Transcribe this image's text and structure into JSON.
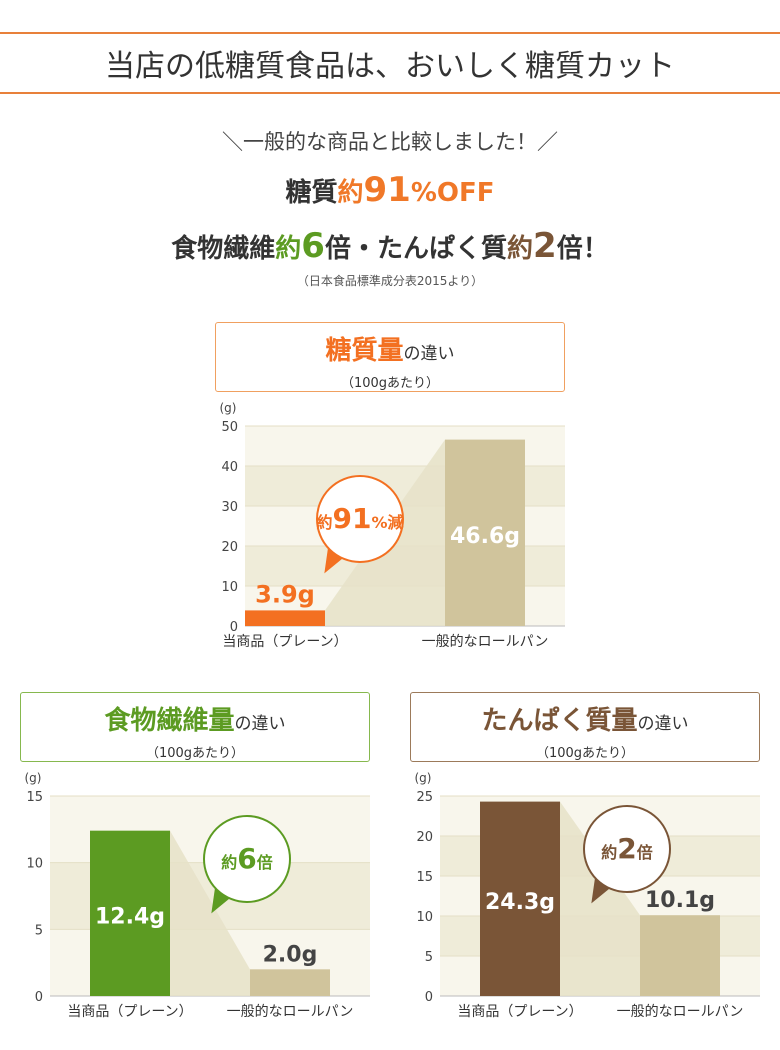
{
  "banner": {
    "title": "当店の低糖質食品は、おいしく糖質カット"
  },
  "summary": {
    "compare": "＼一般的な商品と比較しました！／",
    "line2_a": "糖質",
    "line2_b": "約",
    "line2_c": "91",
    "line2_d": "%OFF",
    "line3_a": "食物繊維",
    "line3_b": "約",
    "line3_c": "6",
    "line3_d": "倍",
    "line3_e": "・たんぱく",
    "line3_f": "質",
    "line3_g": "約",
    "line3_h": "2",
    "line3_i": "倍",
    "line3_j": "！",
    "source": "（日本食品標準成分表2015より）"
  },
  "panels": {
    "sugar": {
      "title": "糖質量",
      "title_suffix": "の違い",
      "subtitle": "（100gあたり）",
      "unit": "(g)",
      "badge_a": "約",
      "badge_b": "91",
      "badge_c": "%減",
      "accent": "#f37021"
    },
    "fiber": {
      "title": "食物繊維量",
      "title_suffix": "の違い",
      "subtitle": "（100gあたり）",
      "unit": "(g)",
      "badge_a": "約",
      "badge_b": "6",
      "badge_c": "倍",
      "accent": "#5c9b22"
    },
    "protein": {
      "title": "たんぱく質量",
      "title_suffix": "の違い",
      "subtitle": "（100gあたり）",
      "unit": "(g)",
      "badge_a": "約",
      "badge_b": "2",
      "badge_c": "倍",
      "accent": "#7a5537"
    }
  },
  "chart_data": [
    {
      "type": "bar",
      "title": "糖質量の違い",
      "categories": [
        "当商品（プレーン）",
        "一般的なロールパン"
      ],
      "values": [
        3.9,
        46.6
      ],
      "labels": [
        "3.9g",
        "46.6g"
      ],
      "ylabel": "(g)",
      "ylim": [
        0,
        50
      ],
      "yticks": [
        0,
        10,
        20,
        30,
        40,
        50
      ],
      "colors": [
        "#f37021",
        "#d0c49c"
      ],
      "label_colors": [
        "#f37021",
        "#ffffff"
      ]
    },
    {
      "type": "bar",
      "title": "食物繊維量の違い",
      "categories": [
        "当商品（プレーン）",
        "一般的なロールパン"
      ],
      "values": [
        12.4,
        2.0
      ],
      "labels": [
        "12.4g",
        "2.0g"
      ],
      "ylabel": "(g)",
      "ylim": [
        0,
        15
      ],
      "yticks": [
        0,
        5,
        10,
        15
      ],
      "colors": [
        "#5c9b22",
        "#d0c49c"
      ],
      "label_colors": [
        "#ffffff",
        "#444444"
      ]
    },
    {
      "type": "bar",
      "title": "たんぱく質量の違い",
      "categories": [
        "当商品（プレーン）",
        "一般的なロールパン"
      ],
      "values": [
        24.3,
        10.1
      ],
      "labels": [
        "24.3g",
        "10.1g"
      ],
      "ylabel": "(g)",
      "ylim": [
        0,
        25
      ],
      "yticks": [
        0,
        5,
        10,
        15,
        20,
        25
      ],
      "colors": [
        "#7a5537",
        "#d0c49c"
      ],
      "label_colors": [
        "#ffffff",
        "#444444"
      ]
    }
  ]
}
